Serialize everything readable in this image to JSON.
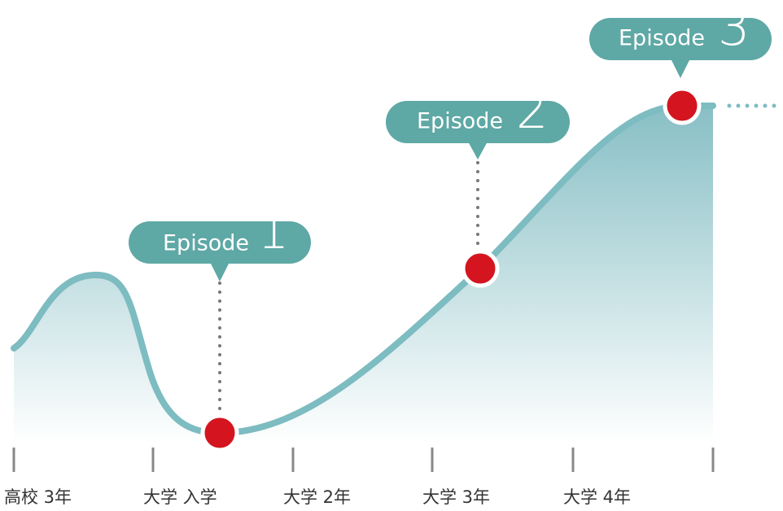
{
  "timeline": {
    "labels": [
      "高校 3年",
      "大学 入学",
      "大学 2年",
      "大学 3年",
      "大学 4年"
    ]
  },
  "episodes": [
    {
      "label": "Episode",
      "number": "1"
    },
    {
      "label": "Episode",
      "number": "2"
    },
    {
      "label": "Episode",
      "number": "3"
    }
  ]
}
